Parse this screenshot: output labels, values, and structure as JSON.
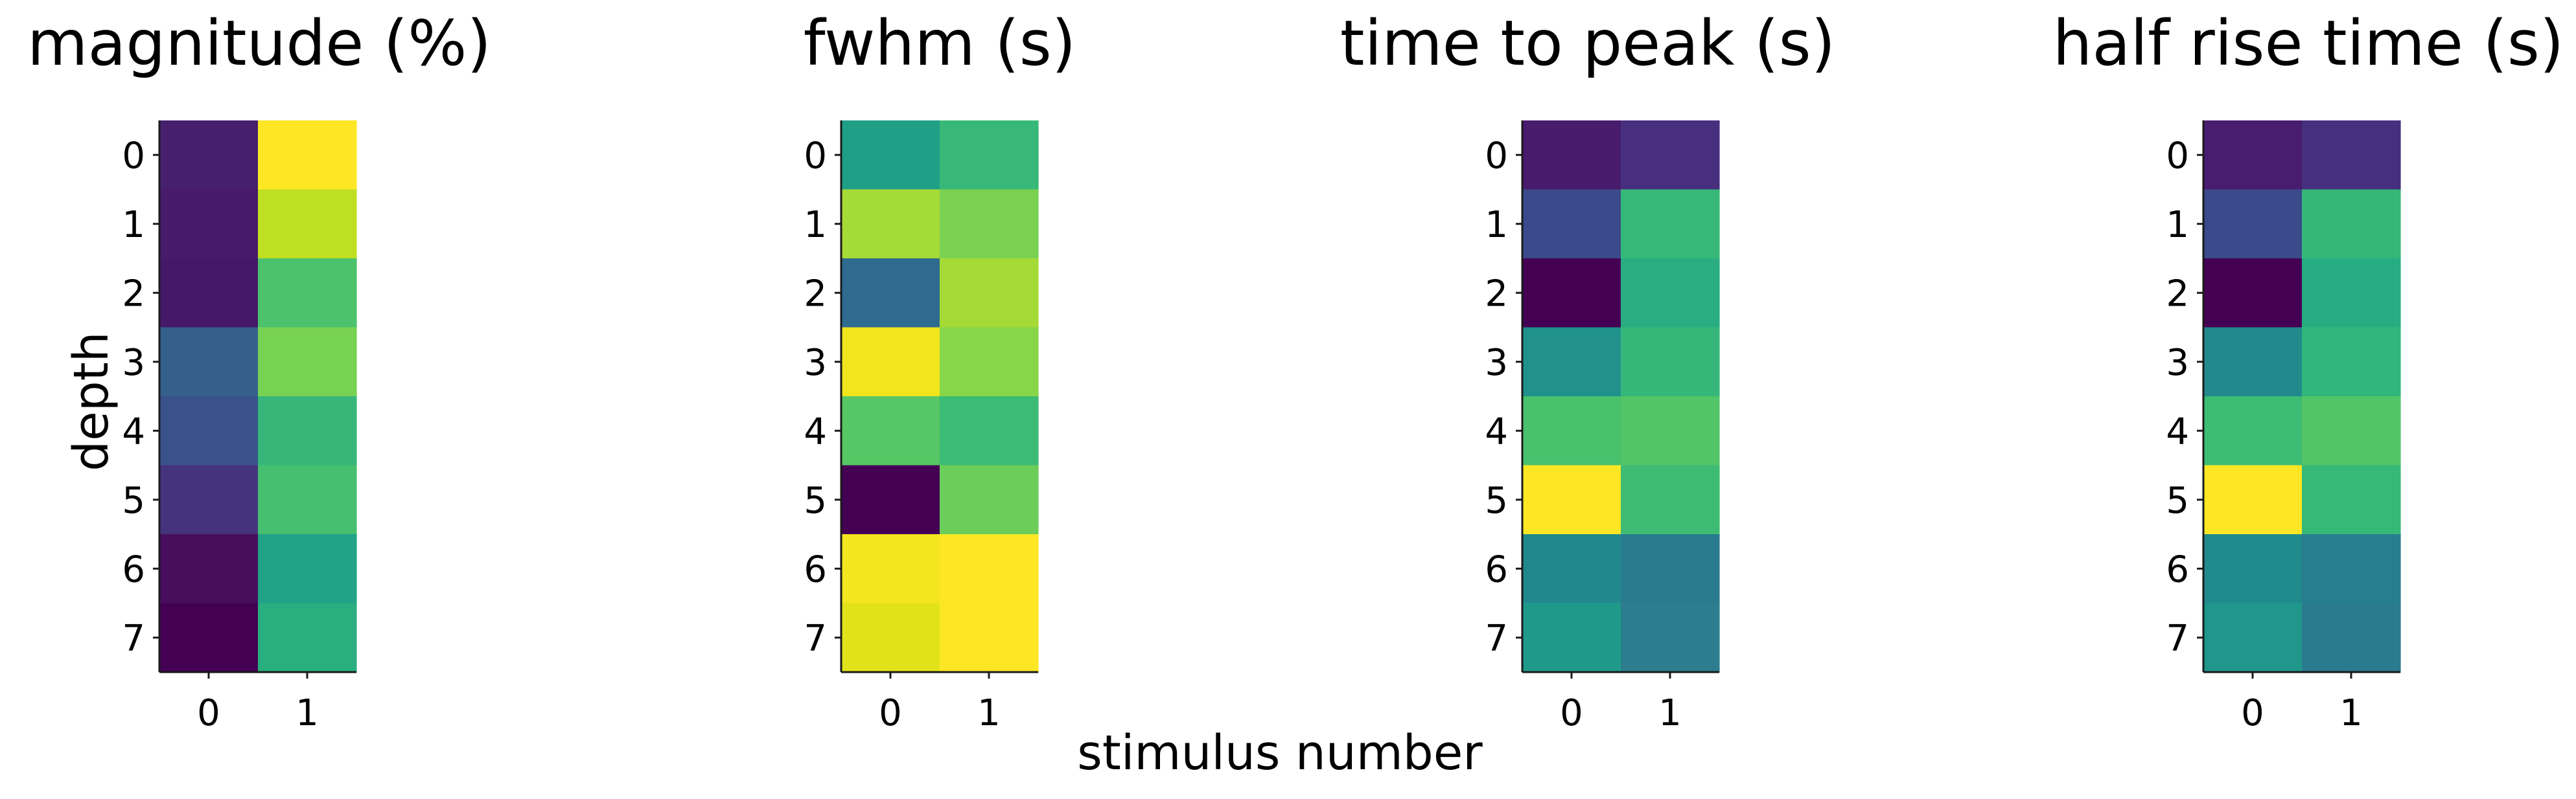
{
  "figure": {
    "ylabel": "depth",
    "xlabel": "stimulus number"
  },
  "chart_data": [
    {
      "type": "heatmap",
      "title": "magnitude (%)",
      "x_ticks": [
        "0",
        "1"
      ],
      "y_ticks": [
        "0",
        "1",
        "2",
        "3",
        "4",
        "5",
        "6",
        "7"
      ],
      "colormap": "viridis",
      "cell_colors": [
        [
          "#46206c",
          "#fde725"
        ],
        [
          "#471a6a",
          "#bfdf22"
        ],
        [
          "#46186a",
          "#4cc26c"
        ],
        [
          "#355f8c",
          "#77d152"
        ],
        [
          "#39528a",
          "#36b779"
        ],
        [
          "#46337e",
          "#46bf6f"
        ],
        [
          "#470e5e",
          "#20a387"
        ],
        [
          "#440154",
          "#29af7f"
        ]
      ]
    },
    {
      "type": "heatmap",
      "title": "fwhm (s)",
      "x_ticks": [
        "0",
        "1"
      ],
      "y_ticks": [
        "0",
        "1",
        "2",
        "3",
        "4",
        "5",
        "6",
        "7"
      ],
      "colormap": "viridis",
      "cell_colors": [
        [
          "#1fa086",
          "#37b878"
        ],
        [
          "#a5db36",
          "#7ad151"
        ],
        [
          "#2e6b8e",
          "#a5da36"
        ],
        [
          "#f2e41d",
          "#87d549"
        ],
        [
          "#57c765",
          "#3bbb75"
        ],
        [
          "#440154",
          "#6ccd5a"
        ],
        [
          "#f4e61e",
          "#fde725"
        ],
        [
          "#e1e21a",
          "#fde725"
        ]
      ]
    },
    {
      "type": "heatmap",
      "title": "time to peak (s)",
      "x_ticks": [
        "0",
        "1"
      ],
      "y_ticks": [
        "0",
        "1",
        "2",
        "3",
        "4",
        "5",
        "6",
        "7"
      ],
      "colormap": "viridis",
      "cell_colors": [
        [
          "#481b6d",
          "#472f7d"
        ],
        [
          "#3b4a8a",
          "#36b878"
        ],
        [
          "#440154",
          "#29ad81"
        ],
        [
          "#21918c",
          "#35b779"
        ],
        [
          "#4ac16d",
          "#52c569"
        ],
        [
          "#fde725",
          "#3fbc73"
        ],
        [
          "#21898d",
          "#297b8e"
        ],
        [
          "#1f9a8a",
          "#2c7e8e"
        ]
      ]
    },
    {
      "type": "heatmap",
      "title": "half rise time (s)",
      "x_ticks": [
        "0",
        "1"
      ],
      "y_ticks": [
        "0",
        "1",
        "2",
        "3",
        "4",
        "5",
        "6",
        "7"
      ],
      "colormap": "viridis",
      "cell_colors": [
        [
          "#481d6f",
          "#46307e"
        ],
        [
          "#3b4a8a",
          "#35b779"
        ],
        [
          "#440154",
          "#26ad81"
        ],
        [
          "#228a8d",
          "#31b67b"
        ],
        [
          "#3cbc74",
          "#52c569"
        ],
        [
          "#fde725",
          "#36b877"
        ],
        [
          "#218a8d",
          "#277f8e"
        ],
        [
          "#1f978b",
          "#2b7b8e"
        ]
      ]
    }
  ]
}
